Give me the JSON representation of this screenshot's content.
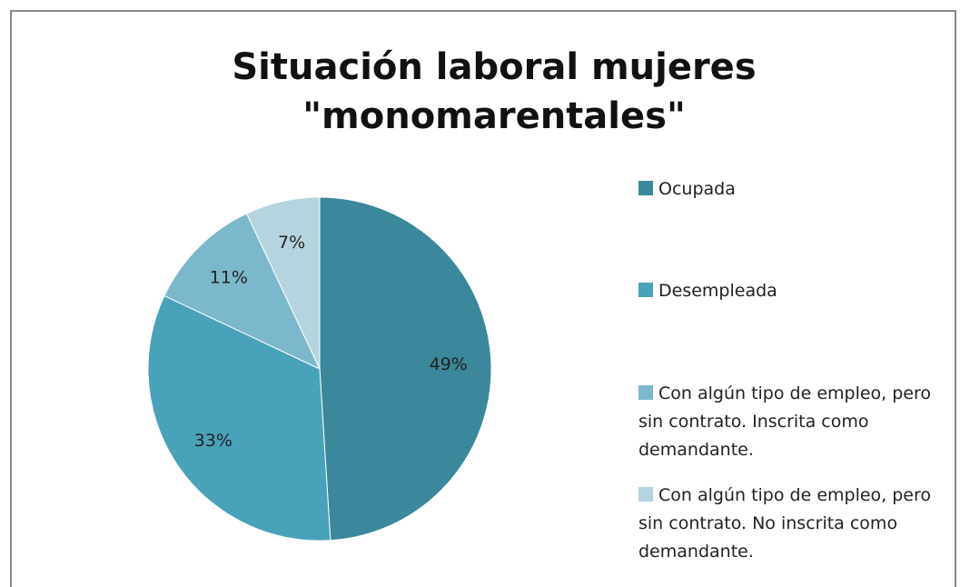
{
  "chart_data": {
    "type": "pie",
    "title": [
      "Situación laboral mujeres",
      "\"monomarentales\""
    ],
    "categories": [
      "Ocupada",
      "Desempleada",
      "Con algún tipo de empleo, pero sin contrato. Inscrita como demandante.",
      "Con algún tipo de empleo, pero sin contrato. No inscrita como demandante."
    ],
    "values": [
      49,
      33,
      11,
      7
    ],
    "value_labels": [
      "49%",
      "33%",
      "11%",
      "7%"
    ],
    "colors": [
      "#3b879b",
      "#48a2b9",
      "#7cb8cb",
      "#b5d4df"
    ]
  }
}
